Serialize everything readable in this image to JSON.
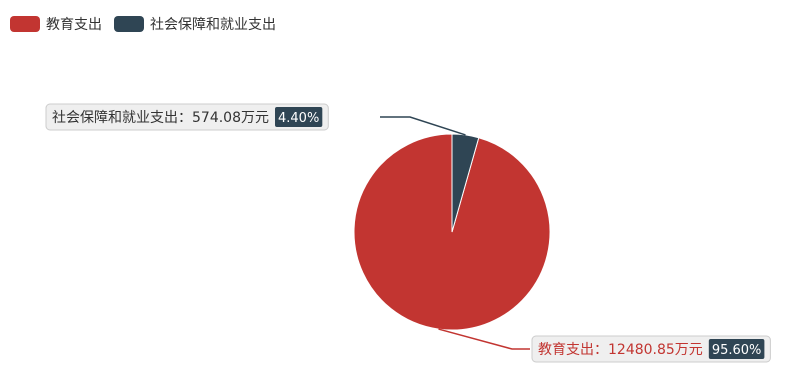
{
  "chart_data": {
    "type": "pie",
    "legend_position": "top-left",
    "slices": [
      {
        "name": "教育支出",
        "value": 12480.85,
        "value_label": "12480.85万元",
        "percent": 95.6,
        "percent_label": "95.60%",
        "color": "#c23531"
      },
      {
        "name": "社会保障和就业支出",
        "value": 574.08,
        "value_label": "574.08万元",
        "percent": 4.4,
        "percent_label": "4.40%",
        "color": "#2f4554"
      }
    ]
  },
  "colors": {
    "label_bg": "#efefef",
    "label_border": "#cccccc",
    "percent_bg": "#2f4554",
    "percent_text": "#ffffff"
  }
}
